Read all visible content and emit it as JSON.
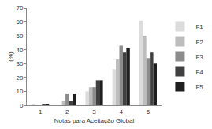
{
  "chart_data": {
    "type": "bar",
    "x_label": "Notas para Aceitação Global",
    "y_label": "(%)",
    "categories": [
      "1",
      "2",
      "3",
      "4",
      "5"
    ],
    "series": [
      {
        "name": "F1",
        "color": "#dcdcdc",
        "values": [
          1,
          0,
          10,
          26,
          61
        ]
      },
      {
        "name": "F2",
        "color": "#bdbdbd",
        "values": [
          0,
          3,
          13,
          33,
          50
        ]
      },
      {
        "name": "F3",
        "color": "#8c8c8c",
        "values": [
          0,
          8,
          13,
          43,
          34
        ]
      },
      {
        "name": "F4",
        "color": "#404040",
        "values": [
          1,
          3,
          18,
          38,
          38
        ]
      },
      {
        "name": "F5",
        "color": "#1f1f1f",
        "values": [
          1,
          8,
          18,
          41,
          30
        ]
      }
    ],
    "ylim": [
      0,
      70
    ],
    "yticks": [
      0,
      10,
      20,
      30,
      40,
      50,
      60,
      70
    ],
    "grid": false,
    "legend": "right"
  }
}
